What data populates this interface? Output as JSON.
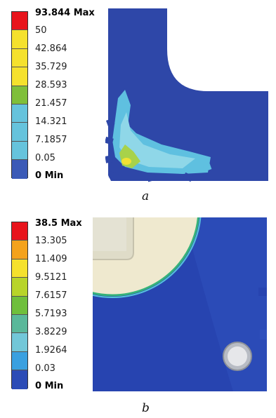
{
  "panel_a": {
    "legend": {
      "labels": [
        "93.844 Max",
        "50",
        "42.864",
        "35.729",
        "28.593",
        "21.457",
        "14.321",
        "7.1857",
        "0.05",
        "0 Min"
      ],
      "colors": [
        "#e8141c",
        "#f5e12d",
        "#f5e12d",
        "#f5e12d",
        "#9bc93a",
        "#66c3dc",
        "#66c3dc",
        "#66c3dc",
        "#3b5ab7",
        "#3b5ab7"
      ]
    },
    "caption": "a"
  },
  "panel_b": {
    "legend": {
      "labels": [
        "38.5 Max",
        "13.305",
        "11.409",
        "9.5121",
        "7.6157",
        "5.7193",
        "3.8229",
        "1.9264",
        "0.03",
        "0 Min"
      ],
      "colors": [
        "#e8141c",
        "#f4a21c",
        "#f5e12d",
        "#b8d42a",
        "#6fbf3c",
        "#5ab89a",
        "#72c7d8",
        "#3aa0e0",
        "#2b4bb6",
        "#2b4bb6"
      ]
    },
    "caption": "b"
  }
}
